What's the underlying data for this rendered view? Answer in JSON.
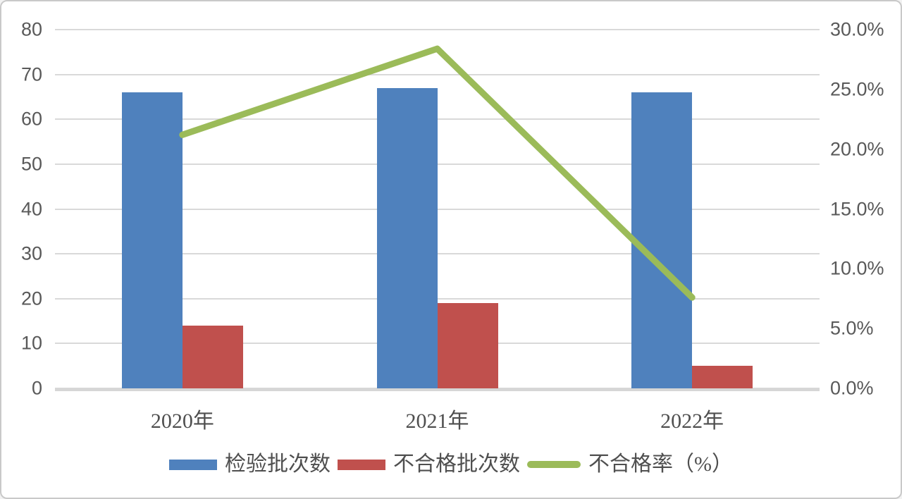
{
  "chart_data": {
    "type": "bar",
    "subtype": "grouped-bars-with-line-combo",
    "title": "",
    "categories": [
      "2020年",
      "2021年",
      "2022年"
    ],
    "category_keys": [
      "2020",
      "2021",
      "2022"
    ],
    "series": [
      {
        "key": "inspected-batches",
        "name": "检验批次数",
        "type": "bar",
        "axis": "left",
        "color": "#4F81BD",
        "values": [
          66,
          67,
          66
        ]
      },
      {
        "key": "failed-batches",
        "name": "不合格批次数",
        "type": "bar",
        "axis": "left",
        "color": "#C0504D",
        "values": [
          14,
          19,
          5
        ]
      },
      {
        "key": "failure-rate",
        "name": "不合格率（%）",
        "type": "line",
        "axis": "right",
        "color": "#9BBB59",
        "values": [
          21.2,
          28.4,
          7.6
        ]
      }
    ],
    "left_axis": {
      "min": 0,
      "max": 80,
      "tick_labels": [
        "80",
        "70",
        "60",
        "50",
        "40",
        "30",
        "20",
        "10",
        "0"
      ]
    },
    "right_axis": {
      "min": 0,
      "max": 30,
      "tick_labels": [
        "30.0%",
        "25.0%",
        "20.0%",
        "15.0%",
        "10.0%",
        "5.0%",
        "0.0%"
      ]
    },
    "grid": "horizontal",
    "legend_position": "bottom",
    "colors": {
      "gridline": "#D9D9D9",
      "axis_line": "#D6D6D6",
      "tick_text": "#595959",
      "label_text": "#4F4F4F",
      "background": "#FFFFFF",
      "border": "#C9C9C9"
    }
  }
}
